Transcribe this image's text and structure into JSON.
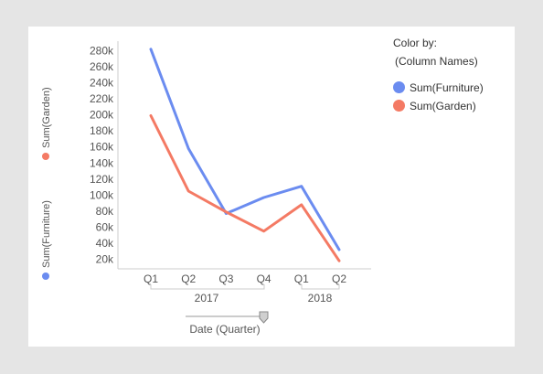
{
  "colors": {
    "furniture": "#6b8cf0",
    "garden": "#f47a64",
    "axis": "#cccccc",
    "text": "#555555"
  },
  "y_axis_labels": {
    "left_top": "Sum(Garden)",
    "left_bottom": "Sum(Furniture)"
  },
  "legend": {
    "title": "Color by:",
    "subtitle": "(Column Names)",
    "items": [
      {
        "label": "Sum(Furniture)",
        "color": "#6b8cf0"
      },
      {
        "label": "Sum(Garden)",
        "color": "#f47a64"
      }
    ]
  },
  "x_axis": {
    "quarters": [
      "Q1",
      "Q2",
      "Q3",
      "Q4",
      "Q1",
      "Q2"
    ],
    "years": [
      "2017",
      "2018"
    ],
    "label": "Date (Quarter)"
  },
  "chart_data": {
    "type": "line",
    "categories": [
      "2017 Q1",
      "2017 Q2",
      "2017 Q3",
      "2017 Q4",
      "2018 Q1",
      "2018 Q2"
    ],
    "series": [
      {
        "name": "Sum(Furniture)",
        "color": "#6b8cf0",
        "values": [
          282000,
          158000,
          77000,
          97000,
          111000,
          32000
        ]
      },
      {
        "name": "Sum(Garden)",
        "color": "#f47a64",
        "values": [
          199000,
          105000,
          79000,
          55000,
          88000,
          18000
        ]
      }
    ],
    "yticks": [
      "20k",
      "40k",
      "60k",
      "80k",
      "100k",
      "120k",
      "140k",
      "160k",
      "180k",
      "200k",
      "220k",
      "240k",
      "260k",
      "280k"
    ],
    "ylim": [
      8000,
      292000
    ],
    "xlabel": "Date (Quarter)",
    "legend": "right",
    "grid": false
  }
}
